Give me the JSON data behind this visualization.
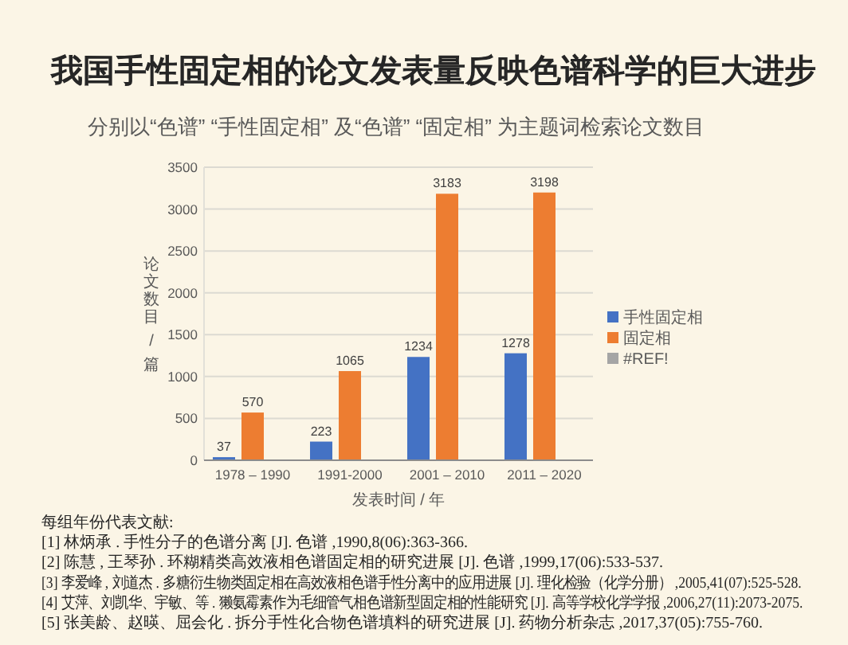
{
  "chart_data": {
    "type": "bar",
    "title": "我国手性固定相的论文发表量反映色谱科学的巨大进步",
    "subtitle": "分别以“色谱” “手性固定相” 及“色谱” “固定相” 为主题词检索论文数目",
    "xlabel": "发表时间 / 年",
    "ylabel": "论文数目 / 篇",
    "categories": [
      "1978 – 1990",
      "1991-2000",
      "2001 – 2010",
      "2011 – 2020"
    ],
    "series": [
      {
        "name": "手性固定相",
        "color": "#4472c4",
        "values": [
          37,
          223,
          1234,
          1278
        ]
      },
      {
        "name": "固定相",
        "color": "#ed7d31",
        "values": [
          570,
          1065,
          3183,
          3198
        ]
      },
      {
        "name": "#REF!",
        "color": "#a5a5a5",
        "values": [
          null,
          null,
          null,
          null
        ]
      }
    ],
    "ylim": [
      0,
      3500
    ],
    "yticks": [
      0,
      500,
      1000,
      1500,
      2000,
      2500,
      3000,
      3500
    ],
    "grid": "y",
    "data_labels": true,
    "legend": "right",
    "annotations": [
      "每组年份代表文献:",
      "[1] 林炳承 . 手性分子的色谱分离 [J]. 色谱 ,1990,8(06):363-366.",
      "[2] 陈慧 , 王琴孙 . 环糊精类高效液相色谱固定相的研究进展 [J]. 色谱 ,1999,17(06):533-537.",
      "[3] 李爱峰 , 刘道杰 . 多糖衍生物类固定相在高效液相色谱手性分离中的应用进展 [J]. 理化检验（化学分册） ,2005,41(07):525-528.",
      "[4] 艾萍、刘凯华、宇敏、等 . 獭氨霉素作为毛细管气相色谱新型固定相的性能研究 [J]. 高等学校化学学报 ,2006,27(11):2073-2075.",
      "[5] 张美龄、赵暎、屈会化 . 拆分手性化合物色谱填料的研究进展 [J]. 药物分析杂志 ,2017,37(05):755-760."
    ]
  }
}
